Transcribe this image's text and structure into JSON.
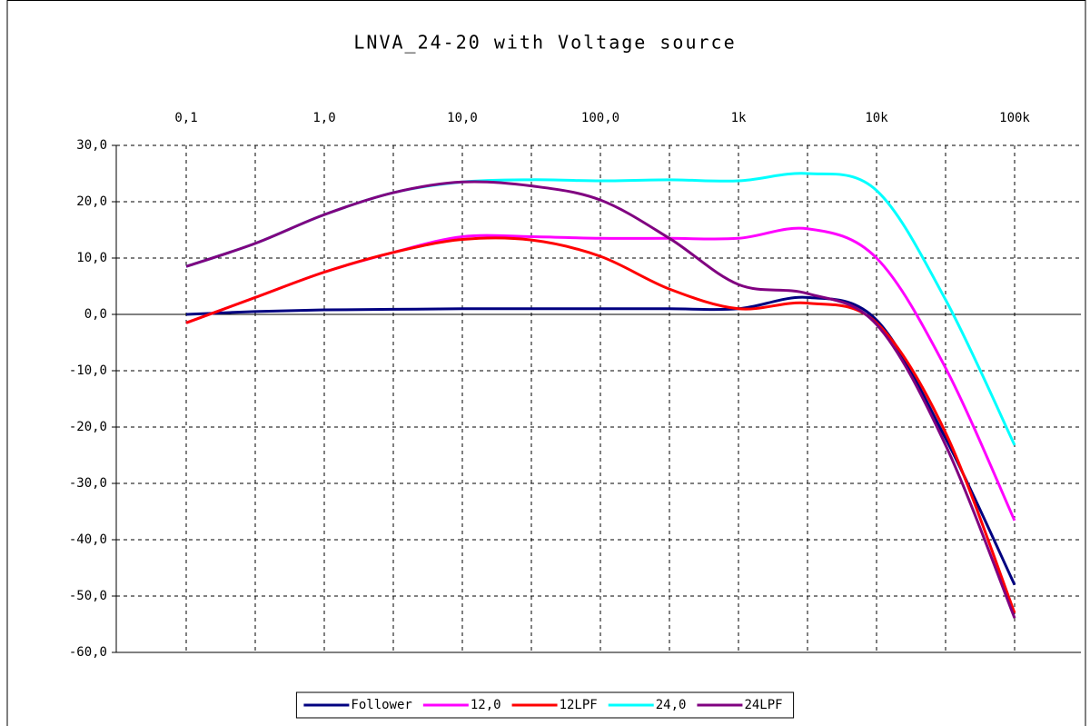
{
  "chart_data": {
    "type": "line",
    "title": "LNVA_24-20 with Voltage source",
    "categories": [
      "0,1",
      null,
      "1,0",
      null,
      "10,0",
      null,
      "100,0",
      null,
      "1k",
      null,
      "10k",
      null,
      "100k"
    ],
    "series": [
      {
        "name": "Follower",
        "color": "#000080",
        "values": [
          0,
          0.5,
          0.8,
          0.9,
          1,
          1,
          1,
          1,
          1,
          3,
          -1,
          -22,
          -48
        ]
      },
      {
        "name": "12,0",
        "color": "#ff00ff",
        "values": [
          -1.5,
          3,
          7.5,
          11,
          13.8,
          13.8,
          13.5,
          13.5,
          13.5,
          15.2,
          10,
          -9.5,
          -36.6
        ]
      },
      {
        "name": "12LPF",
        "color": "#ff0000",
        "values": [
          -1.5,
          3,
          7.5,
          11,
          13.3,
          13.2,
          10.3,
          4.5,
          1,
          2,
          -1.5,
          -21,
          -53
        ]
      },
      {
        "name": "24,0",
        "color": "#00ffff",
        "values": [
          8.5,
          12.6,
          17.7,
          21.6,
          23.5,
          23.9,
          23.7,
          23.9,
          23.7,
          25,
          22,
          2.6,
          -23.2
        ]
      },
      {
        "name": "24LPF",
        "color": "#800080",
        "values": [
          8.5,
          12.6,
          17.7,
          21.6,
          23.5,
          22.8,
          20.3,
          13.5,
          5.3,
          3.7,
          -1.8,
          -23.2,
          -53.9
        ]
      }
    ],
    "ylim": [
      -60,
      30
    ],
    "yticks": [
      {
        "value": 30,
        "label": "30,0"
      },
      {
        "value": 20,
        "label": "20,0"
      },
      {
        "value": 10,
        "label": "10,0"
      },
      {
        "value": 0,
        "label": "0,0"
      },
      {
        "value": -10,
        "label": "-10,0"
      },
      {
        "value": -20,
        "label": "-20,0"
      },
      {
        "value": -30,
        "label": "-30,0"
      },
      {
        "value": -40,
        "label": "-40,0"
      },
      {
        "value": -50,
        "label": "-50,0"
      },
      {
        "value": -60,
        "label": "-60,0"
      }
    ],
    "grid": true,
    "legend": "bottom"
  }
}
